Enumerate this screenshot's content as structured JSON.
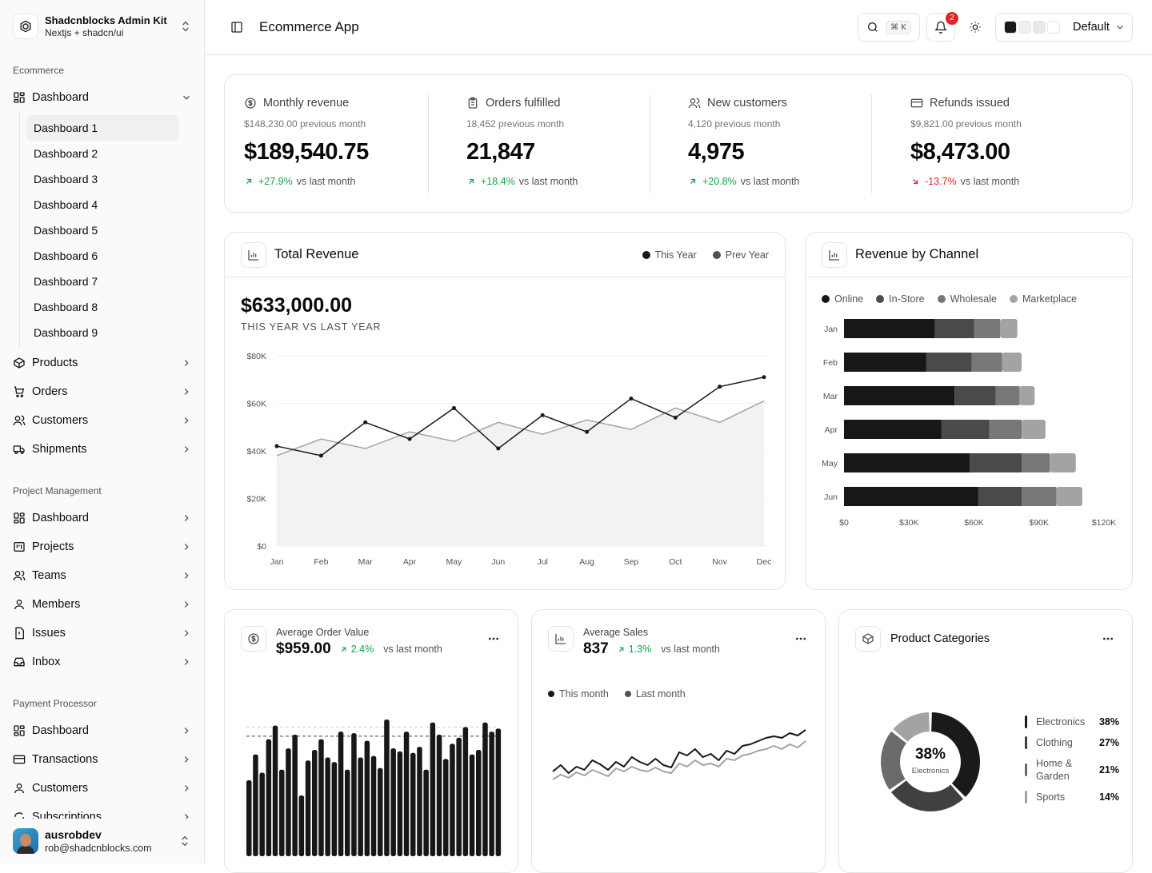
{
  "brand": {
    "title": "Shadcnblocks Admin Kit",
    "subtitle": "Nextjs + shadcn/ui"
  },
  "sidebar": {
    "groups": [
      {
        "label": "Ecommerce"
      },
      {
        "label": "Project Management"
      },
      {
        "label": "Payment Processor"
      }
    ],
    "ecommerce": {
      "dashboard": "Dashboard",
      "sub": [
        "Dashboard 1",
        "Dashboard 2",
        "Dashboard 3",
        "Dashboard 4",
        "Dashboard 5",
        "Dashboard 6",
        "Dashboard 7",
        "Dashboard 8",
        "Dashboard 9"
      ],
      "items": [
        "Products",
        "Orders",
        "Customers",
        "Shipments"
      ]
    },
    "project": [
      "Dashboard",
      "Projects",
      "Teams",
      "Members",
      "Issues",
      "Inbox"
    ],
    "payment": [
      "Dashboard",
      "Transactions",
      "Customers",
      "Subscriptions"
    ]
  },
  "user": {
    "name": "ausrobdev",
    "email": "rob@shadcnblocks.com"
  },
  "header": {
    "title": "Ecommerce App",
    "kbd": "⌘ K",
    "notifications": "2",
    "theme": "Default",
    "swatches": [
      "#1a1a1a",
      "#f0f0f0",
      "#e8e8e8",
      "#ffffff"
    ]
  },
  "stats": [
    {
      "label": "Monthly revenue",
      "icon": "dollar-circle-icon",
      "prev": "$148,230.00 previous month",
      "value": "$189,540.75",
      "delta": "+27.9%",
      "trend": "up",
      "suffix": "vs last month"
    },
    {
      "label": "Orders fulfilled",
      "icon": "clipboard-icon",
      "prev": "18,452 previous month",
      "value": "21,847",
      "delta": "+18.4%",
      "trend": "up",
      "suffix": "vs last month"
    },
    {
      "label": "New customers",
      "icon": "users-icon",
      "prev": "4,120 previous month",
      "value": "4,975",
      "delta": "+20.8%",
      "trend": "up",
      "suffix": "vs last month"
    },
    {
      "label": "Refunds issued",
      "icon": "credit-card-icon",
      "prev": "$9,821.00 previous month",
      "value": "$8,473.00",
      "delta": "-13.7%",
      "trend": "down",
      "suffix": "vs last month"
    }
  ],
  "revenue": {
    "title": "Total Revenue",
    "total": "$633,000.00",
    "subtitle": "THIS YEAR VS LAST YEAR",
    "legend": [
      "This Year",
      "Prev Year"
    ]
  },
  "channel": {
    "title": "Revenue by Channel"
  },
  "aov": {
    "label": "Average Order Value",
    "value": "$959.00",
    "delta": "2.4%",
    "suffix": "vs last month"
  },
  "avg_sales": {
    "label": "Average Sales",
    "value": "837",
    "delta": "1.3%",
    "suffix": "vs last month",
    "legend": [
      "This month",
      "Last month"
    ]
  },
  "categories": {
    "title": "Product Categories",
    "center_value": "38%",
    "center_label": "Electronics",
    "items": [
      {
        "name": "Electronics",
        "pct": "38%",
        "color": "#1a1a1a"
      },
      {
        "name": "Clothing",
        "pct": "27%",
        "color": "#404040"
      },
      {
        "name": "Home &\nGarden",
        "pct": "21%",
        "color": "#6b6b6b"
      },
      {
        "name": "Sports",
        "pct": "14%",
        "color": "#a3a3a3"
      }
    ]
  },
  "chart_data": [
    {
      "type": "area",
      "title": "Total Revenue",
      "categories": [
        "Jan",
        "Feb",
        "Mar",
        "Apr",
        "May",
        "Jun",
        "Jul",
        "Aug",
        "Sep",
        "Oct",
        "Nov",
        "Dec"
      ],
      "ylim": [
        0,
        80000
      ],
      "yticks": [
        "$0",
        "$20K",
        "$40K",
        "$60K",
        "$80K"
      ],
      "grid": true,
      "legend": "top-right",
      "series": [
        {
          "name": "This Year",
          "values": [
            42000,
            38000,
            52000,
            45000,
            58000,
            41000,
            55000,
            48000,
            62000,
            54000,
            67000,
            71000
          ],
          "color": "#1a1a1a"
        },
        {
          "name": "Prev Year",
          "values": [
            38000,
            45000,
            41000,
            48000,
            44000,
            52000,
            47000,
            53000,
            49000,
            58000,
            52000,
            61000
          ],
          "color": "#a3a3a3"
        }
      ]
    },
    {
      "type": "bar",
      "title": "Revenue by Channel",
      "orientation": "horizontal",
      "stacked": true,
      "categories": [
        "Jan",
        "Feb",
        "Mar",
        "Apr",
        "May",
        "Jun"
      ],
      "xlim": [
        0,
        120000
      ],
      "xticks": [
        "$0",
        "$30K",
        "$60K",
        "$90K",
        "$120K"
      ],
      "legend": "top-left",
      "series": [
        {
          "name": "Online",
          "values": [
            42000,
            38000,
            51000,
            45000,
            58000,
            62000
          ],
          "color": "#171717"
        },
        {
          "name": "In-Store",
          "values": [
            18000,
            21000,
            19000,
            22000,
            24000,
            20000
          ],
          "color": "#4a4a4a"
        },
        {
          "name": "Wholesale",
          "values": [
            12000,
            14000,
            11000,
            15000,
            13000,
            16000
          ],
          "color": "#787878"
        },
        {
          "name": "Marketplace",
          "values": [
            8000,
            9000,
            7000,
            11000,
            12000,
            12000
          ],
          "color": "#a3a3a3"
        }
      ]
    },
    {
      "type": "bar",
      "title": "Average Order Value",
      "values": [
        0.5,
        0.67,
        0.55,
        0.77,
        0.86,
        0.57,
        0.71,
        0.8,
        0.4,
        0.63,
        0.7,
        0.77,
        0.65,
        0.62,
        0.82,
        0.57,
        0.81,
        0.65,
        0.76,
        0.66,
        0.58,
        0.9,
        0.71,
        0.69,
        0.82,
        0.68,
        0.72,
        0.57,
        0.88,
        0.8,
        0.64,
        0.74,
        0.78,
        0.85,
        0.67,
        0.7,
        0.88,
        0.82,
        0.84
      ],
      "reference_lines": [
        0.85,
        0.79
      ],
      "color": "#171717"
    },
    {
      "type": "line",
      "title": "Average Sales",
      "series": [
        {
          "name": "This month",
          "values": [
            0.38,
            0.46,
            0.36,
            0.44,
            0.4,
            0.52,
            0.47,
            0.4,
            0.5,
            0.44,
            0.56,
            0.5,
            0.46,
            0.54,
            0.46,
            0.43,
            0.62,
            0.58,
            0.66,
            0.56,
            0.6,
            0.52,
            0.64,
            0.6,
            0.7,
            0.72,
            0.76,
            0.8,
            0.82,
            0.8,
            0.86,
            0.83,
            0.9
          ],
          "color": "#171717"
        },
        {
          "name": "Last month",
          "values": [
            0.28,
            0.34,
            0.3,
            0.37,
            0.33,
            0.4,
            0.36,
            0.32,
            0.42,
            0.38,
            0.44,
            0.4,
            0.38,
            0.43,
            0.38,
            0.36,
            0.48,
            0.44,
            0.52,
            0.46,
            0.48,
            0.44,
            0.54,
            0.52,
            0.58,
            0.6,
            0.64,
            0.66,
            0.7,
            0.66,
            0.72,
            0.68,
            0.76
          ],
          "color": "#a3a3a3"
        }
      ]
    },
    {
      "type": "pie",
      "title": "Product Categories",
      "categories": [
        "Electronics",
        "Clothing",
        "Home & Garden",
        "Sports"
      ],
      "values": [
        38,
        27,
        21,
        14
      ]
    }
  ]
}
